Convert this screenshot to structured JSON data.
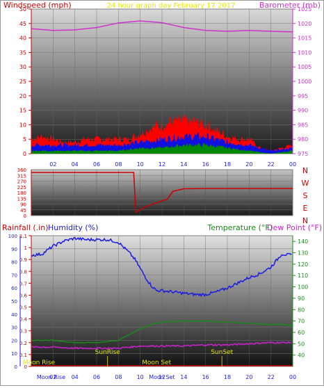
{
  "chart_data": [
    {
      "type": "line",
      "title": "24 hour graph day   February 17 2017",
      "left_axis_label": "Windspeed (mph)",
      "right_axis_label": "Barometer (mb)",
      "left_ylim": [
        0,
        50
      ],
      "left_ticks": [
        "0",
        "5",
        "10",
        "15",
        "20",
        "25",
        "30",
        "35",
        "40",
        "45",
        "50"
      ],
      "right_ylim": [
        975,
        1025
      ],
      "right_ticks": [
        "975",
        "980",
        "985",
        "990",
        "995",
        "1000",
        "1005",
        "1010",
        "1015",
        "1020",
        "1025"
      ],
      "x_ticks": [
        "02",
        "04",
        "06",
        "08",
        "10",
        "12",
        "14",
        "16",
        "18",
        "20",
        "22",
        "00"
      ],
      "colors": {
        "barometer": "#cc33cc",
        "gust": "#ff0000",
        "wind_avg": "#1010e0",
        "wind_low": "#008800"
      },
      "series": [
        {
          "key": "barometer",
          "axis": "right",
          "x": [
            0,
            2,
            4,
            6,
            8,
            10,
            12,
            14,
            16,
            18,
            20,
            22,
            24
          ],
          "y": [
            1018.2,
            1017.6,
            1017.8,
            1018.6,
            1020.2,
            1020.9,
            1020.3,
            1018.6,
            1017.6,
            1017.3,
            1017.6,
            1017.3,
            1017.1
          ]
        },
        {
          "key": "gust",
          "axis": "left",
          "x": [
            0,
            1,
            2,
            3,
            4,
            5,
            6,
            7,
            8,
            9,
            10,
            11,
            12,
            13,
            14,
            15,
            16,
            17,
            18,
            19,
            20,
            21,
            22,
            23,
            24
          ],
          "y": [
            5,
            6,
            5,
            4,
            4,
            5,
            5,
            5,
            5,
            5,
            7,
            9,
            10,
            11,
            11,
            11,
            10,
            8,
            6,
            5,
            5,
            2,
            1,
            2,
            3
          ]
        },
        {
          "key": "wind_avg",
          "axis": "left",
          "x": [
            0,
            2,
            4,
            6,
            8,
            10,
            12,
            14,
            16,
            18,
            20,
            22,
            24
          ],
          "y": [
            3,
            3,
            3,
            3,
            3,
            4,
            5,
            6,
            6,
            4,
            3,
            1,
            2
          ]
        },
        {
          "key": "wind_low",
          "axis": "left",
          "x": [
            0,
            2,
            4,
            6,
            8,
            10,
            12,
            14,
            16,
            18,
            20,
            22,
            24
          ],
          "y": [
            1,
            1,
            1,
            1,
            1,
            2,
            2,
            3,
            3,
            2,
            1,
            0,
            1
          ]
        }
      ]
    },
    {
      "type": "line",
      "ylim": [
        0,
        360
      ],
      "y_ticks": [
        "0",
        "45",
        "90",
        "135",
        "180",
        "225",
        "270",
        "315",
        "360"
      ],
      "compass": [
        "N",
        "W",
        "S",
        "E",
        "N"
      ],
      "color": "#cc0000",
      "x": [
        0,
        9.4,
        9.6,
        10.5,
        11.5,
        12.5,
        13,
        14,
        16,
        18,
        20,
        22,
        24
      ],
      "y": [
        338,
        338,
        25,
        70,
        100,
        130,
        190,
        210,
        212,
        212,
        212,
        212,
        212
      ]
    },
    {
      "type": "line",
      "left_label": "Rainfall (.in)",
      "humidity_label": "Humidity (%)",
      "temp_label": "Temperature (°F)",
      "dew_label": "Dew Point (°F)",
      "rain_ylim": [
        0,
        1.1
      ],
      "rain_ticks": [
        "0",
        "0.1",
        "0.2",
        "0.3",
        "0.4",
        "0.5",
        "0.6",
        "0.7",
        "0.8",
        "0.9",
        "1",
        "1.1"
      ],
      "humidity_ylim": [
        0,
        100
      ],
      "humidity_ticks": [
        "0",
        "10",
        "20",
        "30",
        "40",
        "50",
        "60",
        "70",
        "80",
        "90",
        "100"
      ],
      "temp_ylim": [
        30,
        145
      ],
      "temp_ticks": [
        "40",
        "50",
        "60",
        "70",
        "80",
        "90",
        "100",
        "110",
        "120",
        "130",
        "140"
      ],
      "x_ticks": [
        "02",
        "04",
        "06",
        "08",
        "10",
        "12",
        "14",
        "16",
        "18",
        "20",
        "22",
        "00"
      ],
      "colors": {
        "rain": "#cc0000",
        "humidity": "#1a1ae6",
        "temperature": "#1a8a1a",
        "dew": "#cc22cc"
      },
      "annotations": [
        {
          "label": "SunRise",
          "x": 7.0
        },
        {
          "label": "SunSet",
          "x": 17.5
        },
        {
          "label": "Moon Set",
          "x": 11.5
        },
        {
          "label": "Moon Rise",
          "x": 0.7
        }
      ],
      "bottom_labels": [
        {
          "label": "Moon Rise",
          "x": 0.5
        },
        {
          "label": "Moon Set",
          "x": 10.8
        }
      ],
      "series": [
        {
          "key": "humidity",
          "x": [
            0,
            1,
            2,
            3,
            4,
            5,
            6,
            7,
            8,
            9,
            9.5,
            10,
            10.5,
            11,
            11.5,
            12,
            13,
            14,
            15,
            16,
            17,
            18,
            19,
            20,
            21,
            22,
            23,
            24
          ],
          "y": [
            85,
            86,
            92,
            96,
            98,
            97,
            97,
            97,
            95,
            87,
            82,
            75,
            68,
            62,
            58,
            58,
            57,
            56,
            55,
            55,
            57,
            60,
            64,
            68,
            71,
            76,
            86,
            85
          ]
        },
        {
          "key": "temperature",
          "x": [
            0,
            2,
            4,
            6,
            8,
            9,
            10,
            11,
            12,
            14,
            16,
            18,
            20,
            22,
            23,
            24
          ],
          "y": [
            53,
            53,
            51,
            51,
            53,
            58,
            63,
            67,
            69,
            70,
            70,
            69,
            68,
            67,
            67,
            66
          ]
        },
        {
          "key": "dew",
          "x": [
            0,
            2,
            4,
            6,
            8,
            10,
            12,
            14,
            16,
            18,
            20,
            22,
            24
          ],
          "y": [
            47,
            47,
            46,
            46,
            46,
            48,
            48,
            48,
            49,
            49,
            50,
            51,
            51
          ]
        },
        {
          "key": "rain",
          "x": [
            0,
            24
          ],
          "y": [
            0,
            0
          ]
        }
      ]
    }
  ]
}
